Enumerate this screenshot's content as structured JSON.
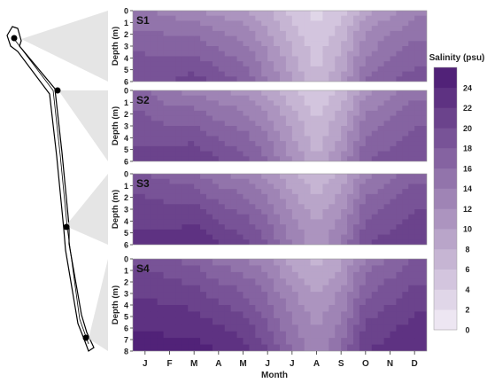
{
  "chart_data": {
    "type": "heatmap",
    "x_axis": {
      "label": "Month",
      "categories": [
        "J",
        "F",
        "M",
        "A",
        "M",
        "J",
        "J",
        "A",
        "S",
        "O",
        "N",
        "D"
      ]
    },
    "y_axis": {
      "label": "Depth (m)",
      "orientation": "depth increasing downward"
    },
    "colorbar": {
      "title": "Salinity (psu)",
      "levels": [
        0,
        2,
        4,
        6,
        8,
        10,
        12,
        14,
        16,
        18,
        20,
        22,
        24
      ],
      "vmin": 0,
      "vmax": 26,
      "color_low": "#f3eef7",
      "color_high": "#4a1a73"
    },
    "panels": [
      {
        "label": "S1",
        "depth_ticks": [
          0,
          1,
          2,
          3,
          4,
          5,
          6
        ],
        "surface_salinity_by_month": [
          14,
          13,
          12,
          11,
          10,
          8,
          5,
          3,
          5,
          9,
          11,
          13
        ],
        "bottom_salinity_by_month": [
          20,
          20,
          21,
          19,
          18,
          14,
          10,
          6,
          10,
          16,
          18,
          19
        ]
      },
      {
        "label": "S2",
        "depth_ticks": [
          0,
          1,
          2,
          3,
          4,
          5,
          6
        ],
        "surface_salinity_by_month": [
          16,
          14,
          13,
          12,
          11,
          9,
          6,
          4,
          6,
          11,
          13,
          15
        ],
        "bottom_salinity_by_month": [
          21,
          21,
          22,
          20,
          19,
          16,
          12,
          8,
          12,
          18,
          19,
          20
        ]
      },
      {
        "label": "S3",
        "depth_ticks": [
          0,
          1,
          2,
          3,
          4,
          5,
          6
        ],
        "surface_salinity_by_month": [
          18,
          17,
          16,
          14,
          13,
          11,
          8,
          6,
          8,
          13,
          15,
          17
        ],
        "bottom_salinity_by_month": [
          23,
          23,
          24,
          22,
          21,
          18,
          14,
          11,
          14,
          20,
          21,
          22
        ]
      },
      {
        "label": "S4",
        "depth_ticks": [
          0,
          1,
          2,
          3,
          4,
          5,
          6,
          7,
          8
        ],
        "surface_salinity_by_month": [
          19,
          18,
          17,
          15,
          14,
          12,
          9,
          7,
          9,
          14,
          16,
          18
        ],
        "bottom_salinity_by_month": [
          25,
          25,
          25,
          24,
          23,
          20,
          16,
          13,
          16,
          22,
          23,
          24
        ]
      }
    ],
    "map": {
      "stations": [
        "S1",
        "S2",
        "S3",
        "S4"
      ]
    }
  }
}
